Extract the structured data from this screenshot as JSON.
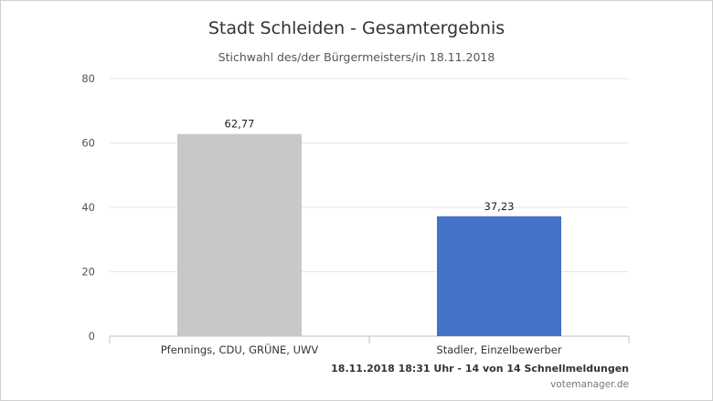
{
  "chart_data": {
    "type": "bar",
    "title": "Stadt Schleiden - Gesamtergebnis",
    "subtitle": "Stichwahl des/der Bürgermeisters/in 18.11.2018",
    "categories": [
      "Pfennings, CDU, GRÜNE, UWV",
      "Stadler, Einzelbewerber"
    ],
    "values": [
      62.77,
      37.23
    ],
    "value_labels": [
      "62,77",
      "37,23"
    ],
    "colors": [
      "#c8c8c8",
      "#4472c8"
    ],
    "ylim": [
      0,
      80
    ],
    "yticks": [
      0,
      20,
      40,
      60,
      80
    ],
    "grid": true,
    "xlabel": "",
    "ylabel": ""
  },
  "footer": {
    "status": "18.11.2018 18:31 Uhr - 14 von 14 Schnellmeldungen",
    "source": "votemanager.de"
  }
}
